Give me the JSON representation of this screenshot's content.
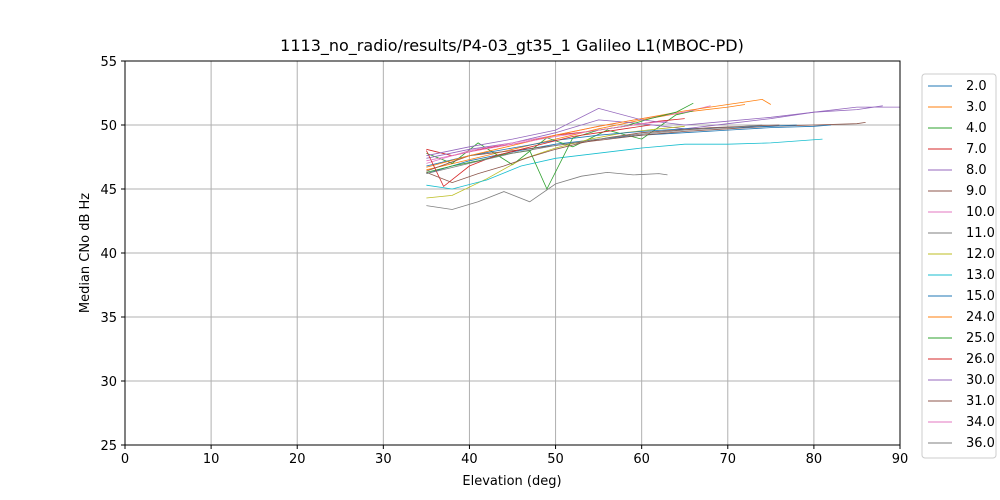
{
  "chart_data": {
    "type": "line",
    "title": "1113_no_radio/results/P4-03_gt35_1 Galileo L1(MBOC-PD)",
    "xlabel": "Elevation (deg)",
    "ylabel": "Median CNo dB Hz",
    "xlim": [
      0,
      90
    ],
    "ylim": [
      25,
      55
    ],
    "xticks": [
      0,
      10,
      20,
      30,
      40,
      50,
      60,
      70,
      80,
      90
    ],
    "yticks": [
      25,
      30,
      35,
      40,
      45,
      50,
      55
    ],
    "grid": true,
    "legend_position": "right",
    "series": [
      {
        "name": "2.0",
        "color": "#1f77b4",
        "x": [
          35,
          40,
          45,
          50,
          55,
          60,
          65,
          70,
          75,
          80,
          82
        ],
        "y": [
          46.2,
          47.2,
          47.9,
          48.5,
          48.9,
          49.2,
          49.4,
          49.6,
          49.8,
          49.9,
          50.0
        ]
      },
      {
        "name": "3.0",
        "color": "#ff7f0e",
        "x": [
          35,
          40,
          45,
          50,
          55,
          60,
          65,
          70,
          72
        ],
        "y": [
          46.5,
          47.3,
          48.1,
          48.9,
          49.7,
          50.4,
          51.0,
          51.4,
          51.6
        ]
      },
      {
        "name": "4.0",
        "color": "#2ca02c",
        "x": [
          35,
          38,
          41,
          45,
          49,
          52,
          56,
          60,
          64,
          66
        ],
        "y": [
          47.8,
          47.0,
          48.6,
          46.9,
          49.0,
          48.3,
          49.6,
          48.9,
          50.8,
          51.1
        ]
      },
      {
        "name": "7.0",
        "color": "#d62728",
        "x": [
          35,
          38,
          42,
          46,
          50,
          54,
          58,
          62,
          65
        ],
        "y": [
          48.1,
          47.6,
          48.2,
          48.6,
          49.2,
          49.5,
          49.9,
          50.3,
          50.5
        ]
      },
      {
        "name": "8.0",
        "color": "#9467bd",
        "x": [
          35,
          40,
          45,
          50,
          55,
          60,
          65,
          70,
          75,
          80,
          85,
          88
        ],
        "y": [
          47.4,
          48.1,
          48.6,
          49.4,
          50.4,
          50.1,
          49.7,
          50.1,
          50.5,
          51.0,
          51.2,
          51.5
        ]
      },
      {
        "name": "9.0",
        "color": "#8c564b",
        "x": [
          35,
          40,
          45,
          50,
          55,
          60,
          65,
          70,
          75,
          80,
          85,
          86
        ],
        "y": [
          46.4,
          47.6,
          48.0,
          48.4,
          48.8,
          49.2,
          49.5,
          49.7,
          49.9,
          50.0,
          50.1,
          50.2
        ]
      },
      {
        "name": "10.0",
        "color": "#e377c2",
        "x": [
          35,
          40,
          45,
          50,
          55,
          60,
          65,
          68
        ],
        "y": [
          47.0,
          48.0,
          48.6,
          49.2,
          49.9,
          50.5,
          51.0,
          51.5
        ]
      },
      {
        "name": "11.0",
        "color": "#7f7f7f",
        "x": [
          35,
          38,
          41,
          44,
          47,
          50,
          53,
          56,
          59,
          62,
          63
        ],
        "y": [
          43.7,
          43.4,
          44.0,
          44.8,
          44.0,
          45.4,
          46.0,
          46.3,
          46.1,
          46.2,
          46.1
        ]
      },
      {
        "name": "12.0",
        "color": "#bcbd22",
        "x": [
          35,
          38,
          42,
          46,
          50,
          54,
          58,
          62,
          65
        ],
        "y": [
          44.3,
          44.5,
          45.8,
          47.3,
          48.2,
          48.9,
          49.4,
          49.7,
          49.9
        ]
      },
      {
        "name": "13.0",
        "color": "#17becf",
        "x": [
          35,
          38,
          42,
          46,
          50,
          55,
          60,
          65,
          70,
          75,
          81
        ],
        "y": [
          45.3,
          45.0,
          45.7,
          46.8,
          47.4,
          47.8,
          48.2,
          48.5,
          48.5,
          48.6,
          48.9
        ]
      },
      {
        "name": "15.0",
        "color": "#1f77b4",
        "x": [
          35,
          40,
          45,
          50,
          55,
          60,
          65,
          70,
          75,
          78
        ],
        "y": [
          46.8,
          47.6,
          48.2,
          48.8,
          49.2,
          49.5,
          49.7,
          49.8,
          49.9,
          50.0
        ]
      },
      {
        "name": "24.0",
        "color": "#ff7f0e",
        "x": [
          35,
          40,
          45,
          50,
          55,
          60,
          65,
          70,
          72,
          74,
          75
        ],
        "y": [
          46.7,
          47.6,
          48.4,
          49.2,
          49.9,
          50.5,
          51.1,
          51.6,
          51.8,
          52.0,
          51.6
        ]
      },
      {
        "name": "25.0",
        "color": "#2ca02c",
        "x": [
          35,
          38,
          41,
          44,
          47,
          49,
          52,
          55,
          58,
          61,
          64,
          66
        ],
        "y": [
          46.3,
          46.8,
          47.2,
          47.7,
          48.0,
          45.0,
          49.0,
          49.6,
          49.9,
          50.5,
          51.0,
          51.7
        ]
      },
      {
        "name": "26.0",
        "color": "#d62728",
        "x": [
          35,
          37,
          40,
          43,
          46,
          49,
          52,
          55,
          58,
          61
        ],
        "y": [
          48.0,
          45.2,
          46.8,
          47.6,
          48.1,
          48.6,
          49.1,
          49.4,
          49.7,
          50.0
        ]
      },
      {
        "name": "30.0",
        "color": "#9467bd",
        "x": [
          35,
          40,
          45,
          50,
          55,
          60,
          65,
          70,
          75,
          80,
          85,
          90
        ],
        "y": [
          47.6,
          48.3,
          48.9,
          49.6,
          51.3,
          50.4,
          50.0,
          50.3,
          50.6,
          51.0,
          51.4,
          51.4
        ]
      },
      {
        "name": "31.0",
        "color": "#8c564b",
        "x": [
          35,
          38,
          41,
          44,
          47,
          50,
          53,
          56,
          60,
          64,
          68,
          72,
          76
        ],
        "y": [
          46.3,
          45.5,
          46.2,
          46.8,
          47.5,
          48.1,
          48.6,
          49.0,
          49.4,
          49.6,
          49.8,
          49.9,
          50.0
        ]
      },
      {
        "name": "34.0",
        "color": "#e377c2",
        "x": [
          35,
          40,
          45,
          50,
          55,
          60,
          63
        ],
        "y": [
          47.2,
          47.9,
          48.5,
          49.1,
          49.6,
          50.1,
          50.3
        ]
      },
      {
        "name": "36.0",
        "color": "#7f7f7f",
        "x": [
          35,
          40,
          45,
          50,
          55,
          60,
          65,
          70,
          74
        ],
        "y": [
          46.2,
          47.0,
          47.8,
          48.4,
          48.9,
          49.3,
          49.6,
          49.8,
          50.0
        ]
      }
    ]
  }
}
